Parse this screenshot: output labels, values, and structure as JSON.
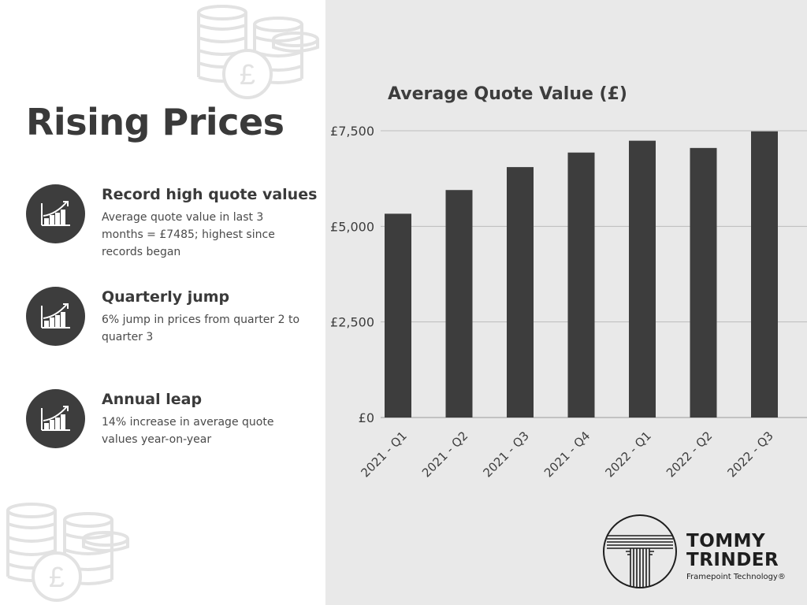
{
  "page": {
    "title": "Rising Prices",
    "stats": [
      {
        "title": "Record high quote values",
        "text": "Average quote value in last 3 months = £7485; highest since records began",
        "icon": "growth-chart-icon"
      },
      {
        "title": "Quarterly jump",
        "text": "6% jump in prices from quarter 2 to quarter 3",
        "icon": "growth-chart-icon"
      },
      {
        "title": "Annual leap",
        "text": "14% increase in average quote values year-on-year",
        "icon": "growth-chart-icon"
      }
    ]
  },
  "colors": {
    "bar": "#3d3d3d",
    "panel": "#e9e9e9",
    "text": "#3d3d3d",
    "decor": "#e2e2e2"
  },
  "logo": {
    "line1": "TOMMY",
    "line2": "TRINDER",
    "sub": "Framepoint Technology®"
  },
  "chart_data": {
    "type": "bar",
    "title": "Average Quote Value (£)",
    "xlabel": "",
    "ylabel": "",
    "categories": [
      "2021 - Q1",
      "2021 - Q2",
      "2021 - Q3",
      "2021 - Q4",
      "2022 - Q1",
      "2022 - Q2",
      "2022 - Q3"
    ],
    "values": [
      5330,
      5950,
      6550,
      6930,
      7240,
      7050,
      7485
    ],
    "ylim": [
      0,
      7500
    ],
    "yticks": [
      0,
      2500,
      5000,
      7500
    ],
    "ytick_labels": [
      "£0",
      "£2,500",
      "£5,000",
      "£7,500"
    ],
    "grid": true,
    "legend": "none"
  }
}
